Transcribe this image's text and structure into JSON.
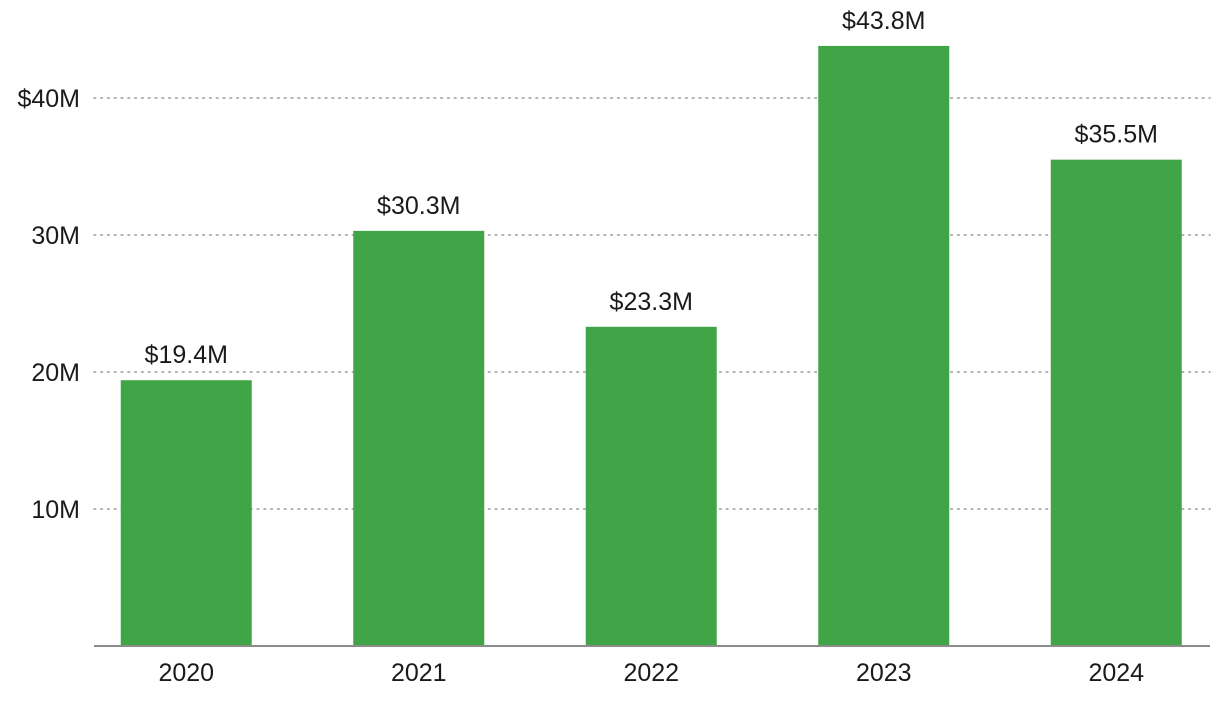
{
  "chart_data": {
    "type": "bar",
    "title": "",
    "xlabel": "",
    "ylabel": "",
    "categories": [
      "2020",
      "2021",
      "2022",
      "2023",
      "2024"
    ],
    "values": [
      19.4,
      30.3,
      23.3,
      43.8,
      35.5
    ],
    "value_labels": [
      "$19.4M",
      "$30.3M",
      "$23.3M",
      "$43.8M",
      "$35.5M"
    ],
    "unit": "M",
    "ylim": [
      0,
      46
    ],
    "y_ticks": [
      {
        "value": 10,
        "label": "10M"
      },
      {
        "value": 20,
        "label": "20M"
      },
      {
        "value": 30,
        "label": "30M"
      },
      {
        "value": 40,
        "label": "$40M"
      }
    ],
    "grid": true,
    "legend": "none",
    "bar_color": "#3fa547",
    "grid_color": "#9a9a9a",
    "baseline_color": "#8c8c8c",
    "text_color": "#1a1a1a"
  }
}
